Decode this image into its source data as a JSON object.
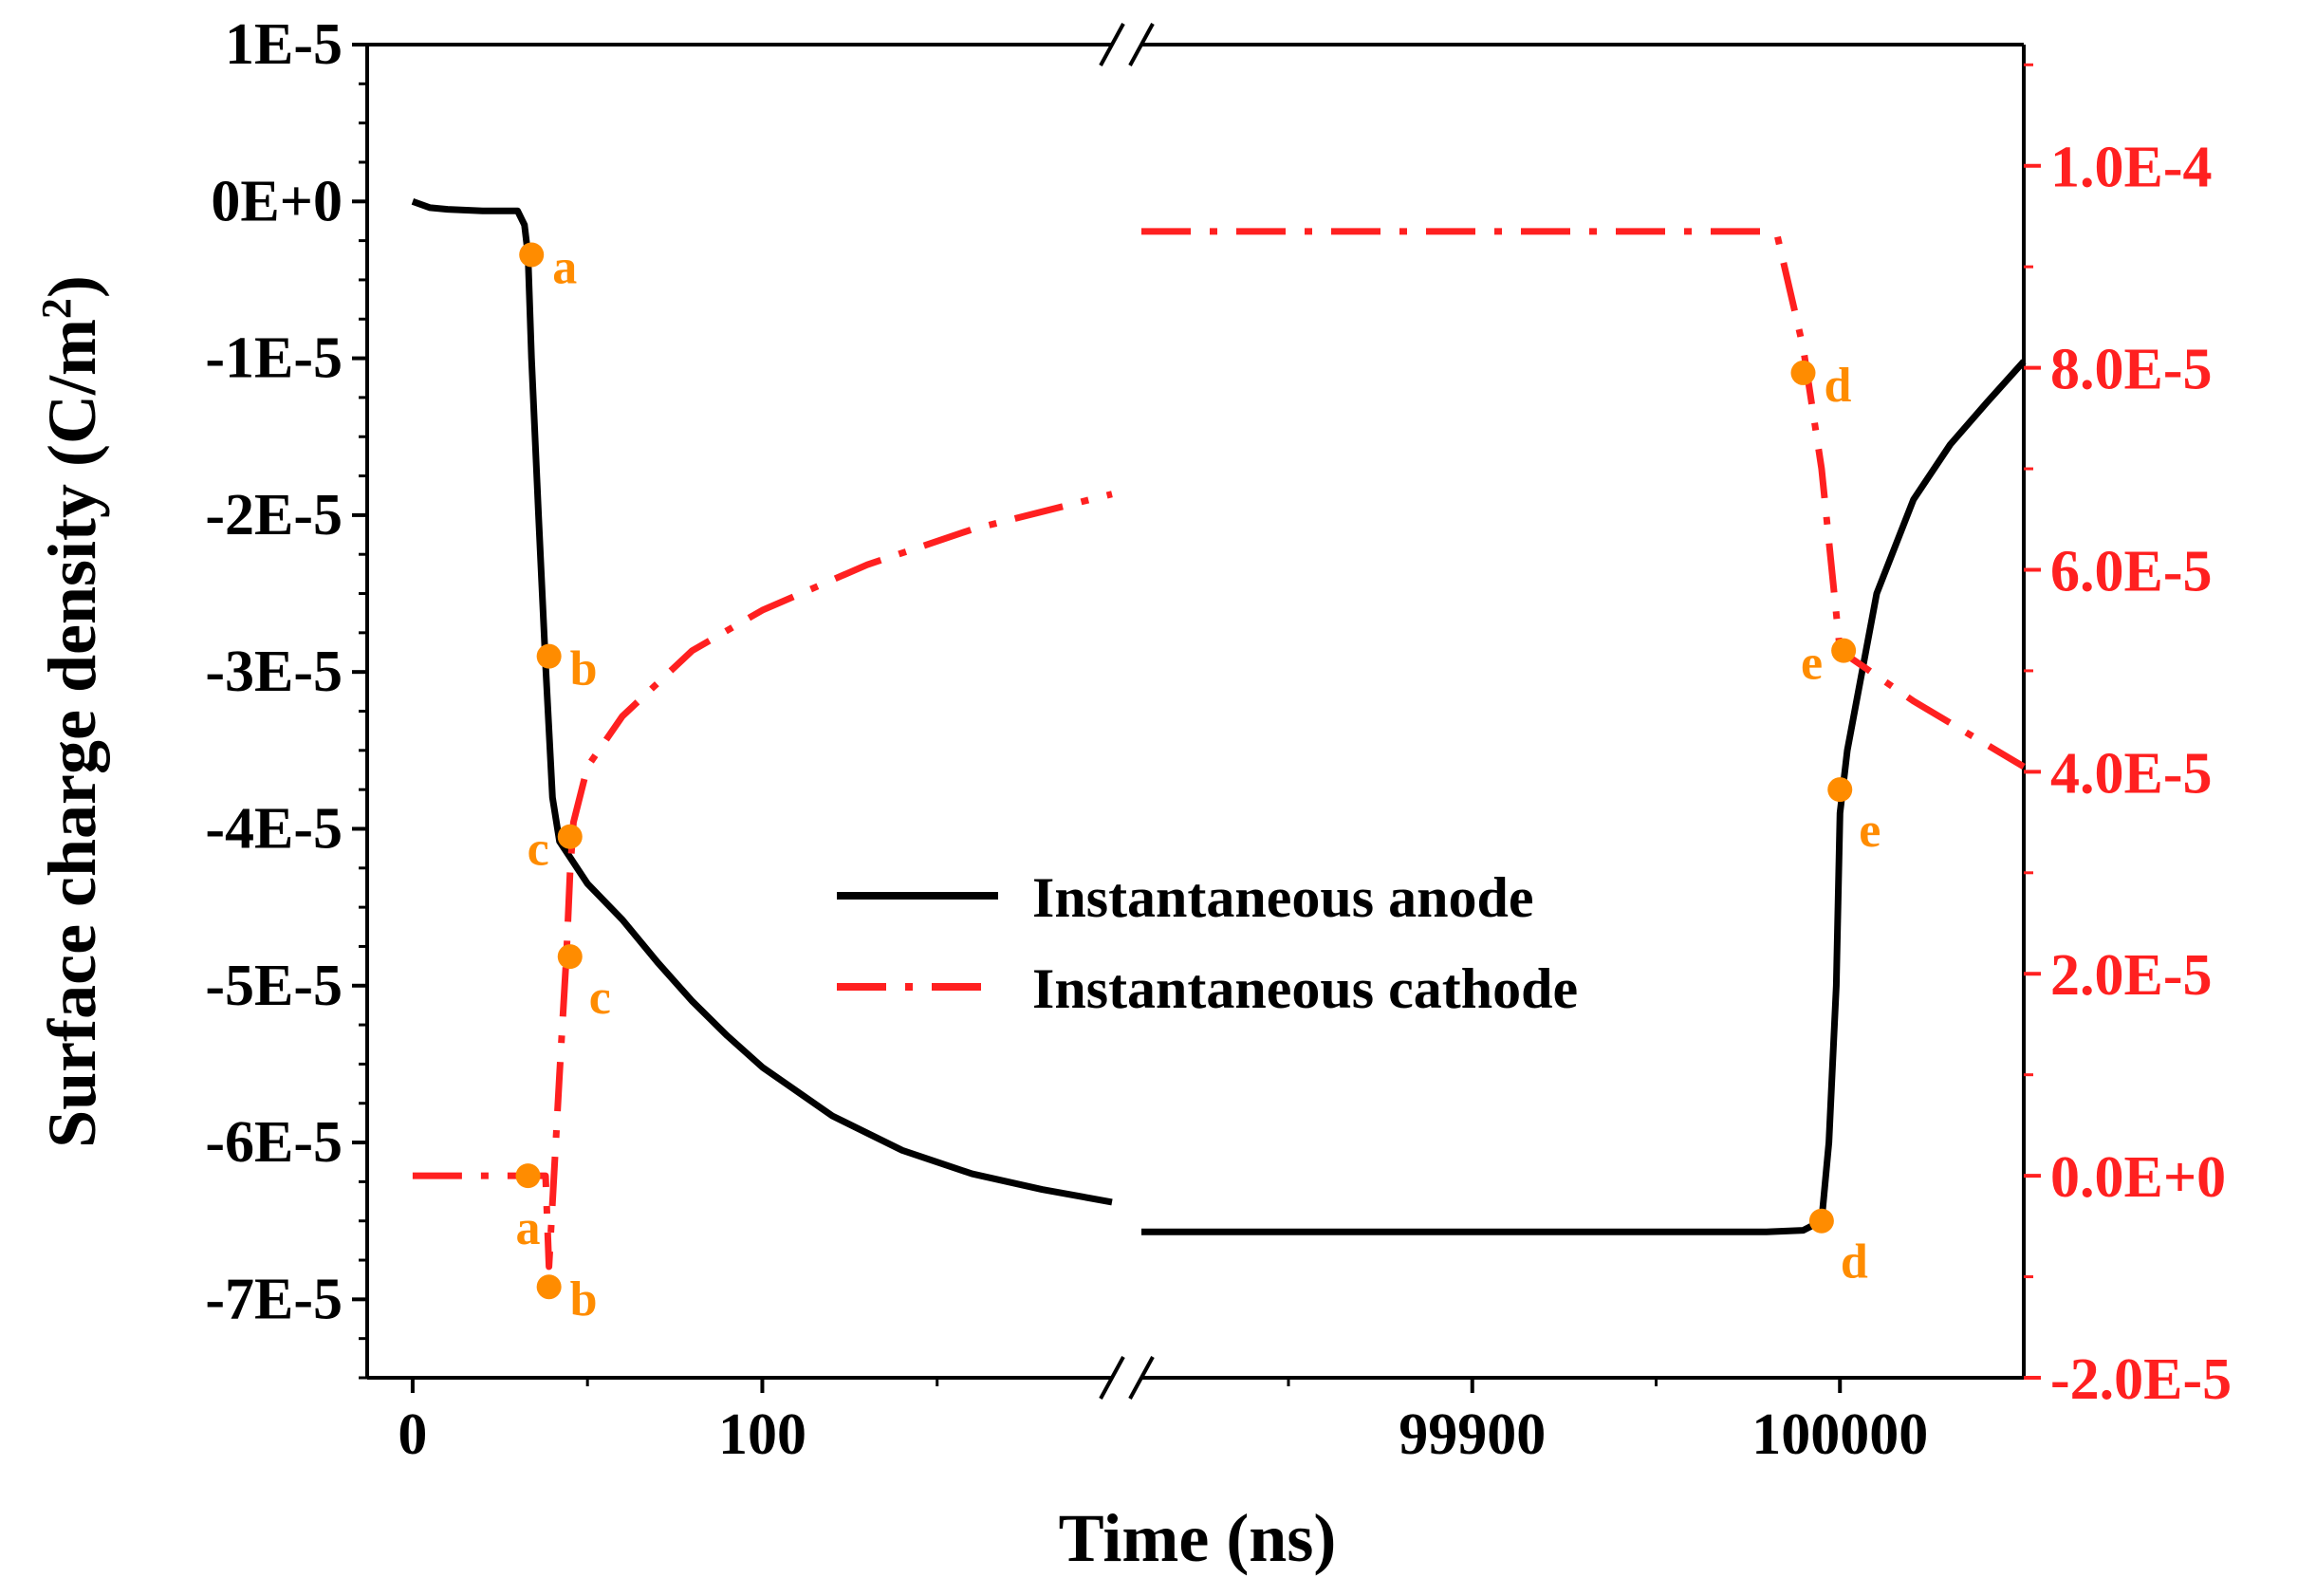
{
  "chart_data": {
    "type": "line",
    "title": "",
    "xlabel": "Time (ns)",
    "ylabel_left": "Surface charge density (C/m²)",
    "ylabel_left_base": "Surface charge density (C/m",
    "ylabel_left_sup": "2",
    "ylabel_left_close": ")",
    "x_break": {
      "left_segment": [
        -13,
        200
      ],
      "right_segment": [
        99810,
        100050
      ]
    },
    "x_ticks": [
      {
        "value": 0,
        "label": "0"
      },
      {
        "value": 100,
        "label": "100"
      },
      {
        "value": 99900,
        "label": "99900"
      },
      {
        "value": 100000,
        "label": "100000"
      }
    ],
    "x_minor_ticks": [
      50,
      150,
      99850,
      99950,
      100050
    ],
    "ylim_left": [
      -7.5e-05,
      1e-05
    ],
    "y_ticks_left": [
      {
        "value": 1e-05,
        "label": "1E-5"
      },
      {
        "value": 0,
        "label": "0E+0"
      },
      {
        "value": -1e-05,
        "label": "-1E-5"
      },
      {
        "value": -2e-05,
        "label": "-2E-5"
      },
      {
        "value": -3e-05,
        "label": "-3E-5"
      },
      {
        "value": -4e-05,
        "label": "-4E-5"
      },
      {
        "value": -5e-05,
        "label": "-5E-5"
      },
      {
        "value": -6e-05,
        "label": "-6E-5"
      },
      {
        "value": -7e-05,
        "label": "-7E-5"
      }
    ],
    "ylim_right": [
      -2e-05,
      0.000112
    ],
    "y_ticks_right": [
      {
        "value": 0.0001,
        "label": "1.0E-4"
      },
      {
        "value": 8e-05,
        "label": "8.0E-5"
      },
      {
        "value": 6e-05,
        "label": "6.0E-5"
      },
      {
        "value": 4e-05,
        "label": "4.0E-5"
      },
      {
        "value": 2e-05,
        "label": "2.0E-5"
      },
      {
        "value": 0,
        "label": "0.0E+0"
      },
      {
        "value": -2e-05,
        "label": "-2.0E-5"
      }
    ],
    "legend_position": "center-right",
    "colors": {
      "anode": "#000000",
      "cathode": "#ff2020",
      "markers": "#ff8c00"
    },
    "series": [
      {
        "name": "Instantaneous anode",
        "axis": "left",
        "style": "solid",
        "segments": [
          [
            [
              0,
              0
            ],
            [
              5,
              -4e-07
            ],
            [
              10,
              -5e-07
            ],
            [
              20,
              -6e-07
            ],
            [
              30,
              -6e-07
            ],
            [
              32,
              -1.5e-06
            ],
            [
              33,
              -3.4e-06
            ],
            [
              34,
              -1e-05
            ],
            [
              36,
              -2e-05
            ],
            [
              38,
              -2.95e-05
            ],
            [
              40,
              -3.8e-05
            ],
            [
              42,
              -4.08e-05
            ],
            [
              50,
              -4.35e-05
            ],
            [
              60,
              -4.58e-05
            ],
            [
              70,
              -4.85e-05
            ],
            [
              80,
              -5.1e-05
            ],
            [
              90,
              -5.32e-05
            ],
            [
              100,
              -5.52e-05
            ],
            [
              120,
              -5.83e-05
            ],
            [
              140,
              -6.05e-05
            ],
            [
              160,
              -6.2e-05
            ],
            [
              180,
              -6.3e-05
            ],
            [
              200,
              -6.38e-05
            ]
          ],
          [
            [
              99810,
              -6.57e-05
            ],
            [
              99900,
              -6.57e-05
            ],
            [
              99980,
              -6.57e-05
            ],
            [
              99990,
              -6.56e-05
            ],
            [
              99995,
              -6.5e-05
            ],
            [
              99997,
              -6e-05
            ],
            [
              99999,
              -5e-05
            ],
            [
              100000,
              -3.9e-05
            ],
            [
              100002,
              -3.5e-05
            ],
            [
              100010,
              -2.5e-05
            ],
            [
              100020,
              -1.9e-05
            ],
            [
              100030,
              -1.55e-05
            ],
            [
              100040,
              -1.28e-05
            ],
            [
              100050,
              -1.02e-05
            ]
          ]
        ]
      },
      {
        "name": "Instantaneous cathode",
        "axis": "right",
        "style": "dashdot",
        "segments": [
          [
            [
              0,
              0
            ],
            [
              20,
              0
            ],
            [
              34,
              0
            ],
            [
              38,
              0
            ],
            [
              39,
              -9e-06
            ],
            [
              42,
              1e-05
            ],
            [
              44,
              2.2e-05
            ],
            [
              45,
              3e-05
            ],
            [
              46,
              3.5e-05
            ],
            [
              50,
              4.05e-05
            ],
            [
              60,
              4.55e-05
            ],
            [
              80,
              5.2e-05
            ],
            [
              100,
              5.6e-05
            ],
            [
              130,
              6.05e-05
            ],
            [
              160,
              6.4e-05
            ],
            [
              200,
              6.75e-05
            ]
          ],
          [
            [
              99810,
              9.35e-05
            ],
            [
              99900,
              9.35e-05
            ],
            [
              99980,
              9.35e-05
            ],
            [
              99983,
              9.3e-05
            ],
            [
              99990,
              8.2e-05
            ],
            [
              99995,
              7e-05
            ],
            [
              100000,
              5.2e-05
            ],
            [
              100020,
              4.7e-05
            ],
            [
              100050,
              4.05e-05
            ]
          ]
        ]
      }
    ],
    "annotations": [
      {
        "label": "a",
        "axis": "left",
        "x": 34,
        "y": -3.4e-06,
        "label_side": "right"
      },
      {
        "label": "b",
        "axis": "left",
        "x": 39,
        "y": -2.9e-05,
        "label_side": "right"
      },
      {
        "label": "c",
        "axis": "left",
        "x": 45,
        "y": -4.05e-05,
        "label_side": "left"
      },
      {
        "label": "d",
        "axis": "left",
        "x": 99995,
        "y": -6.5e-05,
        "label_side": "below-right"
      },
      {
        "label": "e",
        "axis": "left",
        "x": 100000,
        "y": -3.75e-05,
        "label_side": "below-right"
      },
      {
        "label": "a",
        "axis": "right",
        "x": 33,
        "y": 0,
        "label_side": "below"
      },
      {
        "label": "b",
        "axis": "right",
        "x": 39,
        "y": -1.1e-05,
        "label_side": "right"
      },
      {
        "label": "c",
        "axis": "right",
        "x": 45,
        "y": 2.17e-05,
        "label_side": "below-right"
      },
      {
        "label": "d",
        "axis": "right",
        "x": 99990,
        "y": 7.95e-05,
        "label_side": "right"
      },
      {
        "label": "e",
        "axis": "right",
        "x": 100001,
        "y": 5.2e-05,
        "label_side": "left"
      }
    ]
  }
}
